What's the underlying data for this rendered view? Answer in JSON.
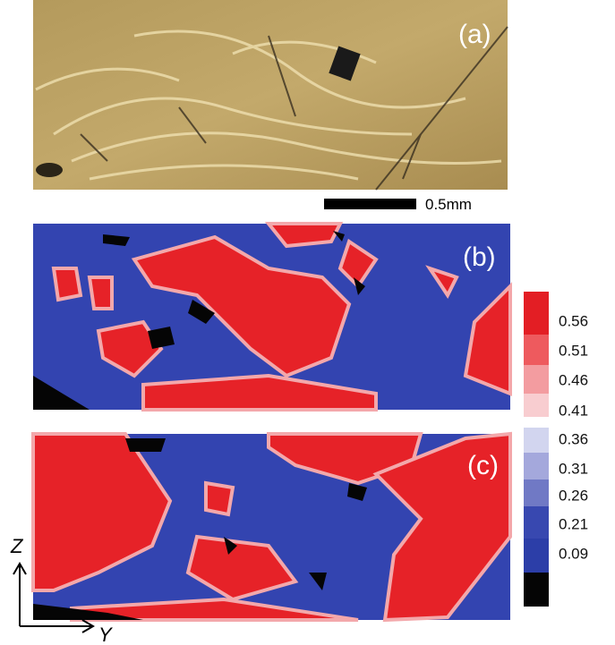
{
  "panels": {
    "a": "(a)",
    "b": "(b)",
    "c": "(c)"
  },
  "scale_bar": "0.5mm",
  "colorbar_labels": [
    "0.56",
    "0.51",
    "0.46",
    "0.41",
    "0.36",
    "0.31",
    "0.26",
    "0.21",
    "0.09"
  ],
  "axes": {
    "vertical": "Z",
    "horizontal": "Y"
  }
}
